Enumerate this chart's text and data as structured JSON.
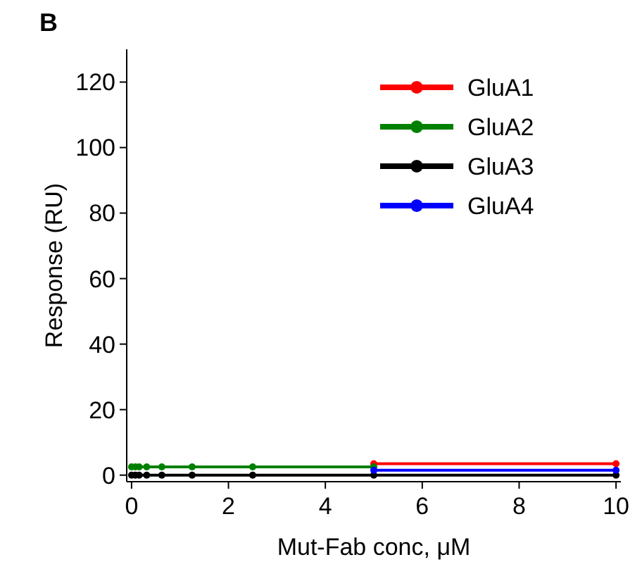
{
  "chart_data": {
    "type": "line",
    "xlabel": "Mut-Fab conc, μM",
    "ylabel": "Response (RU)",
    "annotations": [
      "B"
    ],
    "x": [
      0,
      0.078,
      0.156,
      0.3125,
      0.625,
      1.25,
      2.5,
      5,
      10
    ],
    "xlim": [
      -0.1,
      10.1
    ],
    "xticks": [
      0,
      2,
      4,
      6,
      8,
      10
    ],
    "ylim": [
      -2,
      130
    ],
    "yticks": [
      0,
      20,
      40,
      60,
      80,
      100,
      120
    ],
    "marker": "circle",
    "legend": "top right",
    "grid": false,
    "series": [
      {
        "name": "GluA1",
        "color": "#ff0000",
        "values": [
          null,
          null,
          null,
          null,
          null,
          null,
          null,
          3.5,
          3.5
        ]
      },
      {
        "name": "GluA2",
        "color": "#008000",
        "values": [
          2.5,
          2.5,
          2.5,
          2.5,
          2.5,
          2.5,
          2.5,
          2.5,
          null
        ]
      },
      {
        "name": "GluA3",
        "color": "#000000",
        "values": [
          0,
          0,
          0,
          0,
          0,
          0,
          0,
          0,
          0
        ]
      },
      {
        "name": "GluA4",
        "color": "#0000ff",
        "values": [
          null,
          null,
          null,
          null,
          null,
          null,
          null,
          1.5,
          1.5
        ]
      }
    ]
  }
}
